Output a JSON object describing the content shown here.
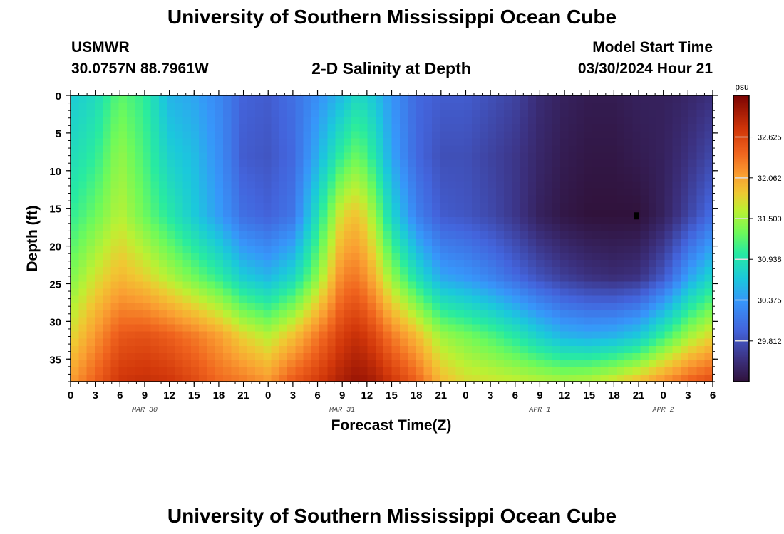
{
  "header": {
    "title": "University of Southern Mississippi Ocean Cube",
    "station": "USMWR",
    "coords": "30.0757N  88.7961W",
    "plot_title": "2-D Salinity at Depth",
    "start_label": "Model Start Time",
    "start_value": "03/30/2024 Hour 21"
  },
  "footer": {
    "title": "University of Southern Mississippi Ocean Cube"
  },
  "chart_data": {
    "type": "heatmap",
    "title": "2-D Salinity at Depth",
    "xlabel": "Forecast Time(Z)",
    "ylabel": "Depth (ft)",
    "units": "psu",
    "x_ticks": [
      "0",
      "3",
      "6",
      "9",
      "12",
      "15",
      "18",
      "21",
      "0",
      "3",
      "6",
      "9",
      "12",
      "15",
      "18",
      "21",
      "0",
      "3",
      "6",
      "9",
      "12",
      "15",
      "18",
      "21",
      "0",
      "3",
      "6"
    ],
    "date_labels": [
      {
        "label": "MAR 30",
        "hour": 9
      },
      {
        "label": "MAR 31",
        "hour": 33
      },
      {
        "label": "APR 1",
        "hour": 57
      },
      {
        "label": "APR 2",
        "hour": 72
      }
    ],
    "xlim": [
      0,
      78
    ],
    "y_ticks": [
      0,
      5,
      10,
      15,
      20,
      25,
      30,
      35
    ],
    "ylim": [
      0,
      38
    ],
    "colorbar": {
      "label": "psu",
      "ticks": [
        "32.625",
        "32.062",
        "31.500",
        "30.938",
        "30.375",
        "29.812"
      ],
      "tick_values": [
        32.625,
        32.062,
        31.5,
        30.938,
        30.375,
        29.812
      ],
      "min": 29.25,
      "max": 33.2
    },
    "marker": {
      "hour": 68.7,
      "depth_ft": 16.0
    },
    "anchor_depths_ft": [
      0,
      8,
      16,
      24,
      32,
      38
    ],
    "anchor_profiles": [
      {
        "hour": 0,
        "values": [
          30.7,
          30.85,
          31.05,
          31.35,
          31.75,
          32.1
        ]
      },
      {
        "hour": 3,
        "values": [
          30.85,
          31.05,
          31.3,
          31.7,
          32.15,
          32.45
        ]
      },
      {
        "hour": 6,
        "values": [
          31.25,
          31.45,
          31.6,
          31.95,
          32.5,
          32.75
        ]
      },
      {
        "hour": 9,
        "values": [
          31.05,
          31.15,
          31.3,
          31.8,
          32.55,
          32.8
        ]
      },
      {
        "hour": 12,
        "values": [
          30.55,
          30.75,
          31.0,
          31.55,
          32.45,
          32.75
        ]
      },
      {
        "hour": 15,
        "values": [
          30.45,
          30.6,
          30.7,
          31.3,
          32.3,
          32.6
        ]
      },
      {
        "hour": 18,
        "values": [
          30.25,
          30.3,
          30.4,
          31.05,
          32.1,
          32.4
        ]
      },
      {
        "hour": 21,
        "values": [
          29.95,
          29.9,
          30.05,
          30.7,
          31.8,
          32.3
        ]
      },
      {
        "hour": 24,
        "values": [
          29.9,
          29.85,
          29.95,
          30.55,
          31.6,
          32.15
        ]
      },
      {
        "hour": 27,
        "values": [
          30.05,
          30.0,
          30.1,
          30.8,
          31.9,
          32.5
        ]
      },
      {
        "hour": 30,
        "values": [
          30.3,
          30.5,
          30.9,
          31.4,
          32.3,
          32.7
        ]
      },
      {
        "hour": 33,
        "values": [
          30.6,
          31.1,
          31.8,
          32.25,
          32.7,
          32.95
        ]
      },
      {
        "hour": 35,
        "values": [
          30.85,
          31.3,
          31.9,
          32.3,
          32.8,
          33.05
        ]
      },
      {
        "hour": 37,
        "values": [
          30.65,
          30.95,
          31.45,
          31.95,
          32.6,
          32.95
        ]
      },
      {
        "hour": 39,
        "values": [
          30.35,
          30.45,
          30.8,
          31.45,
          32.3,
          32.75
        ]
      },
      {
        "hour": 42,
        "values": [
          30.0,
          30.0,
          30.2,
          30.9,
          31.95,
          32.45
        ]
      },
      {
        "hour": 45,
        "values": [
          29.9,
          29.8,
          29.9,
          30.45,
          31.5,
          31.95
        ]
      },
      {
        "hour": 48,
        "values": [
          29.9,
          29.8,
          29.85,
          30.35,
          31.35,
          31.75
        ]
      },
      {
        "hour": 51,
        "values": [
          29.8,
          29.7,
          29.75,
          30.2,
          31.2,
          31.7
        ]
      },
      {
        "hour": 54,
        "values": [
          29.7,
          29.6,
          29.6,
          30.0,
          31.0,
          31.65
        ]
      },
      {
        "hour": 57,
        "values": [
          29.5,
          29.45,
          29.4,
          29.8,
          30.75,
          31.6
        ]
      },
      {
        "hour": 60,
        "values": [
          29.4,
          29.35,
          29.3,
          29.65,
          30.55,
          31.55
        ]
      },
      {
        "hour": 63,
        "values": [
          29.35,
          29.3,
          29.25,
          29.55,
          30.5,
          31.6
        ]
      },
      {
        "hour": 66,
        "values": [
          29.35,
          29.3,
          29.25,
          29.5,
          30.55,
          31.75
        ]
      },
      {
        "hour": 69,
        "values": [
          29.4,
          29.35,
          29.25,
          29.55,
          30.7,
          31.95
        ]
      },
      {
        "hour": 72,
        "values": [
          29.4,
          29.4,
          29.4,
          29.85,
          31.1,
          32.2
        ]
      },
      {
        "hour": 75,
        "values": [
          29.45,
          29.55,
          29.7,
          30.4,
          31.5,
          32.45
        ]
      },
      {
        "hour": 78,
        "values": [
          29.55,
          29.75,
          30.05,
          30.8,
          31.8,
          32.6
        ]
      }
    ]
  }
}
